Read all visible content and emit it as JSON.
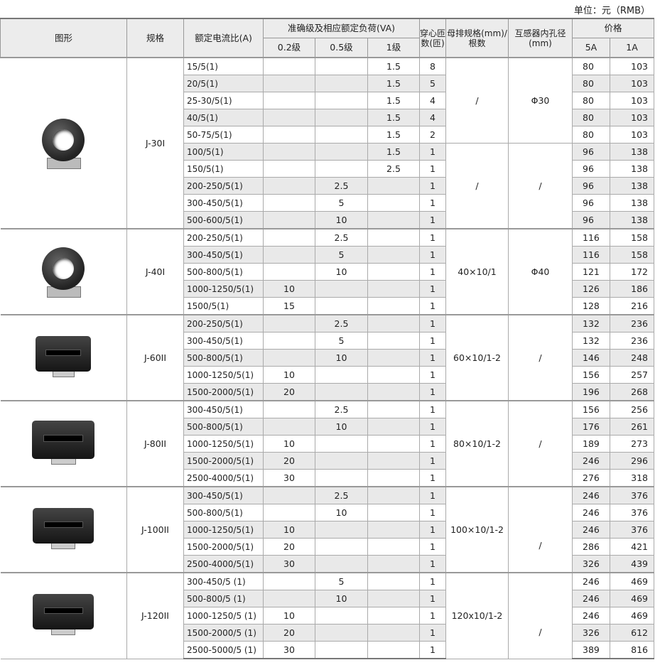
{
  "unit_note": "单位：元（RMB）",
  "headers": {
    "figure": "图形",
    "model": "规格",
    "ratio": "额定电流比(A)",
    "accuracy": "准确级及相应额定负荷(VA)",
    "acc_02": "0.2级",
    "acc_05": "0.5级",
    "acc_1": "1级",
    "turns": "穿心匝数(匝)",
    "busbar": "母排规格(mm)/根数",
    "hole": "互感器内孔径(mm)",
    "price": "价格",
    "price_5a": "5A",
    "price_1a": "1A"
  },
  "groups": [
    {
      "model": "J-30I",
      "image": "round-transformer",
      "segments": [
        {
          "rows": 5,
          "busbar": "/",
          "hole": "Φ30"
        },
        {
          "rows": 5,
          "busbar": "/",
          "hole": "/"
        }
      ],
      "rows": [
        [
          "15/5(1)",
          "",
          "",
          "1.5",
          "8",
          "80",
          "103"
        ],
        [
          "20/5(1)",
          "",
          "",
          "1.5",
          "5",
          "80",
          "103"
        ],
        [
          "25-30/5(1)",
          "",
          "",
          "1.5",
          "4",
          "80",
          "103"
        ],
        [
          "40/5(1)",
          "",
          "",
          "1.5",
          "4",
          "80",
          "103"
        ],
        [
          "50-75/5(1)",
          "",
          "",
          "1.5",
          "2",
          "80",
          "103"
        ],
        [
          "100/5(1)",
          "",
          "",
          "1.5",
          "1",
          "96",
          "138"
        ],
        [
          "150/5(1)",
          "",
          "",
          "2.5",
          "1",
          "96",
          "138"
        ],
        [
          "200-250/5(1)",
          "",
          "2.5",
          "",
          "1",
          "96",
          "138"
        ],
        [
          "300-450/5(1)",
          "",
          "5",
          "",
          "1",
          "96",
          "138"
        ],
        [
          "500-600/5(1)",
          "",
          "10",
          "",
          "1",
          "96",
          "138"
        ]
      ]
    },
    {
      "model": "J-40I",
      "image": "round-transformer",
      "segments": [
        {
          "rows": 5,
          "busbar": "40×10/1",
          "hole": "Φ40"
        }
      ],
      "rows": [
        [
          "200-250/5(1)",
          "",
          "2.5",
          "",
          "1",
          "116",
          "158"
        ],
        [
          "300-450/5(1)",
          "",
          "5",
          "",
          "1",
          "116",
          "158"
        ],
        [
          "500-800/5(1)",
          "",
          "10",
          "",
          "1",
          "121",
          "172"
        ],
        [
          "1000-1250/5(1)",
          "10",
          "",
          "",
          "1",
          "126",
          "186"
        ],
        [
          "1500/5(1)",
          "15",
          "",
          "",
          "1",
          "128",
          "216"
        ]
      ]
    },
    {
      "model": "J-60II",
      "image": "rect-transformer",
      "segments": [
        {
          "rows": 5,
          "busbar": "60×10/1-2",
          "hole": "/"
        }
      ],
      "rows": [
        [
          "200-250/5(1)",
          "",
          "2.5",
          "",
          "1",
          "132",
          "236"
        ],
        [
          "300-450/5(1)",
          "",
          "5",
          "",
          "1",
          "132",
          "236"
        ],
        [
          "500-800/5(1)",
          "",
          "10",
          "",
          "1",
          "146",
          "248"
        ],
        [
          "1000-1250/5(1)",
          "10",
          "",
          "",
          "1",
          "156",
          "257"
        ],
        [
          "1500-2000/5(1)",
          "20",
          "",
          "",
          "1",
          "196",
          "268"
        ]
      ]
    },
    {
      "model": "J-80II",
      "image": "rect-transformer",
      "segments": [
        {
          "rows": 5,
          "busbar": "80×10/1-2",
          "hole": "/"
        }
      ],
      "rows": [
        [
          "300-450/5(1)",
          "",
          "2.5",
          "",
          "1",
          "156",
          "256"
        ],
        [
          "500-800/5(1)",
          "",
          "10",
          "",
          "1",
          "176",
          "261"
        ],
        [
          "1000-1250/5(1)",
          "10",
          "",
          "",
          "1",
          "189",
          "273"
        ],
        [
          "1500-2000/5(1)",
          "20",
          "",
          "",
          "1",
          "246",
          "296"
        ],
        [
          "2500-4000/5(1)",
          "30",
          "",
          "",
          "1",
          "276",
          "318"
        ]
      ]
    },
    {
      "model": "J-100II",
      "image": "rect-transformer",
      "segments": [
        {
          "rows": 5,
          "busbar": "100×10/1-2",
          "hole": "/"
        }
      ],
      "rows": [
        [
          "300-450/5(1)",
          "",
          "2.5",
          "",
          "1",
          "246",
          "376"
        ],
        [
          "500-800/5(1)",
          "",
          "10",
          "",
          "1",
          "246",
          "376"
        ],
        [
          "1000-1250/5(1)",
          "10",
          "",
          "",
          "1",
          "246",
          "376"
        ],
        [
          "1500-2000/5(1)",
          "20",
          "",
          "",
          "1",
          "286",
          "421"
        ],
        [
          "2500-4000/5(1)",
          "30",
          "",
          "",
          "1",
          "326",
          "439"
        ]
      ]
    },
    {
      "model": "J-120II",
      "image": "rect-transformer",
      "segments": [
        {
          "rows": 5,
          "busbar": "120x10/1-2",
          "hole": "/"
        }
      ],
      "rows": [
        [
          "300-450/5 (1)",
          "",
          "5",
          "",
          "1",
          "246",
          "469"
        ],
        [
          "500-800/5 (1)",
          "",
          "10",
          "",
          "1",
          "246",
          "469"
        ],
        [
          "1000-1250/5 (1)",
          "10",
          "",
          "",
          "1",
          "246",
          "469"
        ],
        [
          "1500-2000/5 (1)",
          "20",
          "",
          "",
          "1",
          "326",
          "612"
        ],
        [
          "2500-5000/5 (1)",
          "30",
          "",
          "",
          "1",
          "389",
          "816"
        ]
      ]
    }
  ]
}
